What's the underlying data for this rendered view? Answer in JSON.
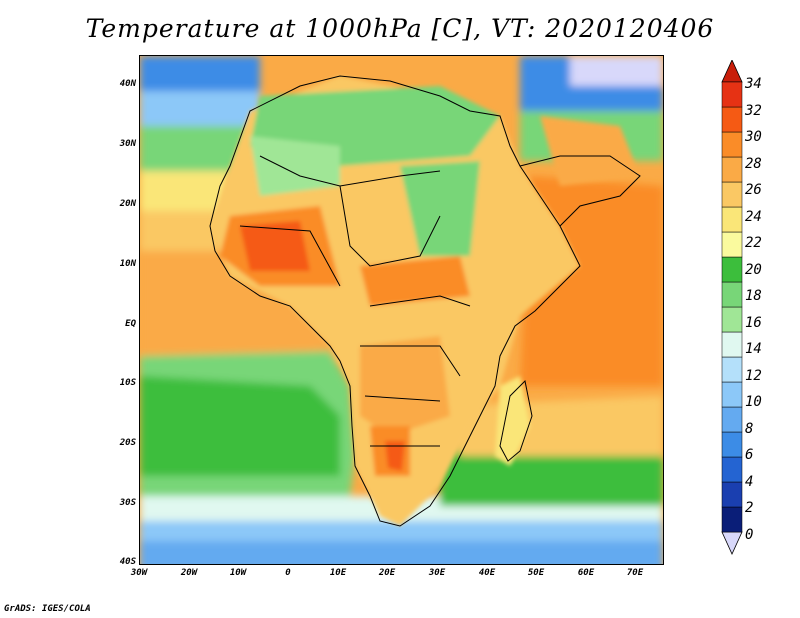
{
  "title": "Temperature at 1000hPa [C], VT: 2020120406",
  "credit": "GrADS: IGES/COLA",
  "map": {
    "lat_labels": [
      "40N",
      "30N",
      "20N",
      "10N",
      "EQ",
      "10S",
      "20S",
      "30S",
      "40S"
    ],
    "lon_labels": [
      "30W",
      "20W",
      "10W",
      "0",
      "10E",
      "20E",
      "30E",
      "40E",
      "50E",
      "60E",
      "70E"
    ],
    "lat_range": [
      -40,
      45
    ],
    "lon_range": [
      -30,
      75
    ]
  },
  "colorbar": {
    "labels": [
      "0",
      "2",
      "4",
      "6",
      "8",
      "10",
      "12",
      "14",
      "16",
      "18",
      "20",
      "22",
      "24",
      "26",
      "28",
      "30",
      "32",
      "34"
    ],
    "colors": [
      "#0a1e78",
      "#1a3fb0",
      "#2464d2",
      "#3c8ce6",
      "#64aaf0",
      "#8cc8f8",
      "#b4e0fa",
      "#e0f8f0",
      "#a0e696",
      "#78d678",
      "#3cbe3c",
      "#fafa9e",
      "#fae678",
      "#fac864",
      "#faaa46",
      "#fa8c28",
      "#f55a14",
      "#e63214"
    ],
    "low_color": "#d8d8fa",
    "high_color": "#c81e0a"
  }
}
